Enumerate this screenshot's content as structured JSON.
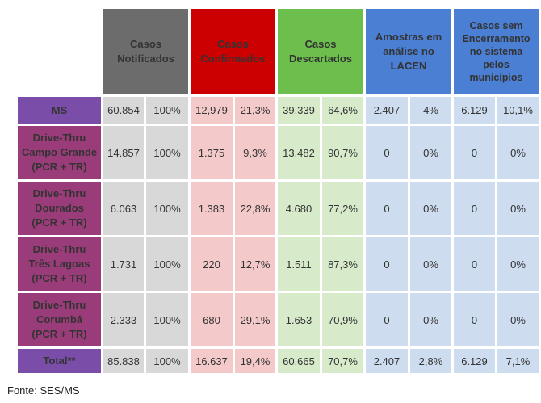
{
  "colors": {
    "notificados_header": "#6c6c6c",
    "notificados_cell": "#d8d8d8",
    "confirmados_header": "#cc0000",
    "confirmados_cell": "#f3c9c9",
    "descartados_header": "#6cbf4c",
    "descartados_cell": "#d7ebcb",
    "lacen_header": "#4a7fd3",
    "lacen_cell": "#cddcee",
    "encerramento_header": "#4a7fd3",
    "encerramento_cell": "#cddcee",
    "row_ms": "#7a4ea8",
    "row_drive": "#9a3c7a",
    "row_total": "#7a4ea8"
  },
  "headers": [
    {
      "key": "notificados",
      "lines": [
        "Casos",
        "Notificados"
      ]
    },
    {
      "key": "confirmados",
      "lines": [
        "Casos",
        "Confirmados"
      ]
    },
    {
      "key": "descartados",
      "lines": [
        "Casos",
        "Descartados"
      ]
    },
    {
      "key": "lacen",
      "lines": [
        "Amostras em",
        "análise no",
        "LACEN"
      ]
    },
    {
      "key": "encerramento",
      "lines": [
        "Casos sem",
        "Encerramento",
        "no sistema",
        "pelos",
        "municípios"
      ]
    }
  ],
  "rows": [
    {
      "label": [
        "MS"
      ],
      "style": "violet",
      "values": [
        "60.854",
        "100%",
        "12,979",
        "21,3%",
        "39.339",
        "64,6%",
        "2.407",
        "4%",
        "6.129",
        "10,1%"
      ]
    },
    {
      "label": [
        "Drive-Thru",
        "Campo Grande",
        "(PCR + TR)"
      ],
      "style": "plum",
      "values": [
        "14.857",
        "100%",
        "1.375",
        "9,3%",
        "13.482",
        "90,7%",
        "0",
        "0%",
        "0",
        "0%"
      ]
    },
    {
      "label": [
        "Drive-Thru",
        "Dourados",
        "(PCR + TR)"
      ],
      "style": "plum",
      "values": [
        "6.063",
        "100%",
        "1.383",
        "22,8%",
        "4.680",
        "77,2%",
        "0",
        "0%",
        "0",
        "0%"
      ]
    },
    {
      "label": [
        "Drive-Thru",
        "Três Lagoas",
        "(PCR + TR)"
      ],
      "style": "plum",
      "values": [
        "1.731",
        "100%",
        "220",
        "12,7%",
        "1.511",
        "87,3%",
        "0",
        "0%",
        "0",
        "0%"
      ]
    },
    {
      "label": [
        "Drive-Thru",
        "Corumbá",
        "(PCR + TR)"
      ],
      "style": "plum",
      "values": [
        "2.333",
        "100%",
        "680",
        "29,1%",
        "1.653",
        "70,9%",
        "0",
        "0%",
        "0",
        "0%"
      ]
    },
    {
      "label": [
        "Total**"
      ],
      "style": "violet",
      "values": [
        "85.838",
        "100%",
        "16.637",
        "19,4%",
        "60.665",
        "70,7%",
        "2.407",
        "2,8%",
        "6.129",
        "7,1%"
      ]
    }
  ],
  "footer": {
    "source": "Fonte: SES/MS"
  }
}
